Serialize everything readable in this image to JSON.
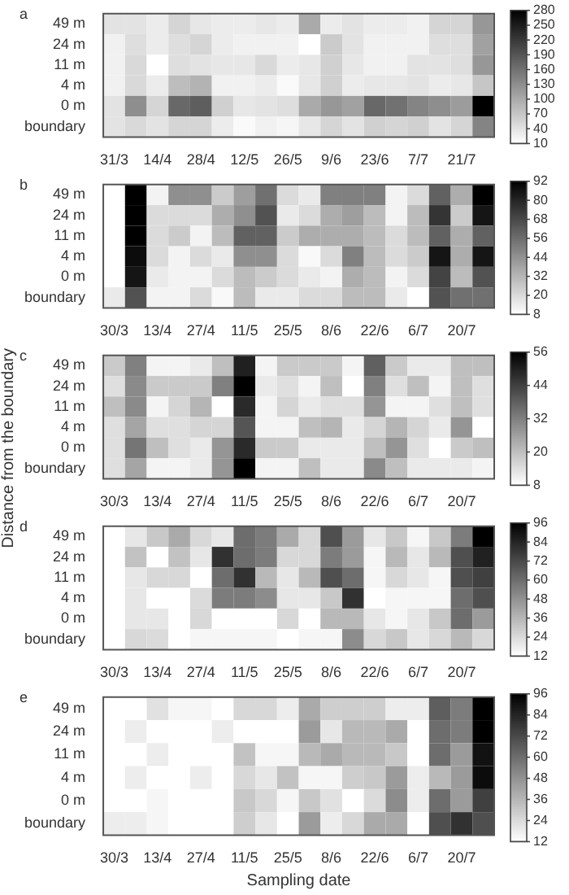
{
  "chart_data": [
    {
      "type": "heatmap",
      "title": "a",
      "categories": [
        "31/3",
        null,
        "14/4",
        null,
        "28/4",
        null,
        "12/5",
        null,
        "26/5",
        null,
        "9/6",
        null,
        "23/6",
        null,
        "7/7",
        null,
        "21/7",
        null
      ],
      "y_categories": [
        "49 m",
        "24 m",
        "11 m",
        "4 m",
        "0 m",
        "boundary"
      ],
      "cells": [
        [
          40,
          40,
          30,
          55,
          35,
          30,
          30,
          35,
          30,
          100,
          30,
          40,
          30,
          30,
          25,
          55,
          55,
          120
        ],
        [
          25,
          45,
          30,
          45,
          55,
          30,
          25,
          25,
          25,
          10,
          65,
          40,
          25,
          25,
          25,
          45,
          45,
          110
        ],
        [
          25,
          50,
          10,
          45,
          40,
          35,
          35,
          50,
          30,
          35,
          60,
          35,
          25,
          25,
          40,
          40,
          45,
          120
        ],
        [
          25,
          50,
          30,
          80,
          90,
          25,
          25,
          30,
          15,
          35,
          60,
          30,
          35,
          35,
          40,
          30,
          35,
          70
        ],
        [
          40,
          130,
          55,
          170,
          180,
          60,
          35,
          40,
          45,
          100,
          120,
          110,
          170,
          160,
          140,
          130,
          115,
          280
        ],
        [
          40,
          50,
          40,
          55,
          55,
          30,
          15,
          25,
          20,
          35,
          55,
          40,
          60,
          55,
          60,
          40,
          55,
          140
        ]
      ],
      "clim": [
        10,
        280
      ],
      "cticks": [
        10,
        40,
        70,
        100,
        130,
        160,
        190,
        220,
        250,
        280
      ]
    },
    {
      "type": "heatmap",
      "title": "b",
      "categories": [
        "30/3",
        null,
        "13/4",
        null,
        "27/4",
        null,
        "11/5",
        null,
        "25/5",
        null,
        "8/6",
        null,
        "22/6",
        null,
        "6/7",
        null,
        "20/7",
        null
      ],
      "y_categories": [
        "49 m",
        "24 m",
        "11 m",
        "4 m",
        "0 m",
        "boundary"
      ],
      "cells": [
        [
          8,
          92,
          12,
          45,
          45,
          25,
          40,
          55,
          20,
          15,
          50,
          50,
          50,
          12,
          20,
          60,
          35,
          92
        ],
        [
          8,
          92,
          20,
          20,
          20,
          35,
          45,
          65,
          15,
          20,
          35,
          40,
          30,
          12,
          30,
          75,
          25,
          85
        ],
        [
          8,
          92,
          20,
          25,
          12,
          30,
          60,
          60,
          25,
          35,
          35,
          35,
          30,
          20,
          30,
          60,
          35,
          60
        ],
        [
          8,
          88,
          20,
          12,
          20,
          15,
          45,
          45,
          20,
          10,
          20,
          50,
          30,
          20,
          25,
          85,
          35,
          85
        ],
        [
          8,
          85,
          15,
          12,
          12,
          20,
          30,
          25,
          20,
          15,
          12,
          35,
          30,
          12,
          20,
          70,
          30,
          65
        ],
        [
          15,
          65,
          12,
          12,
          20,
          10,
          30,
          15,
          15,
          20,
          20,
          30,
          30,
          15,
          8,
          65,
          55,
          55
        ]
      ],
      "clim": [
        8,
        92
      ],
      "cticks": [
        8,
        20,
        32,
        44,
        56,
        68,
        80,
        92
      ]
    },
    {
      "type": "heatmap",
      "title": "c",
      "ylabel": "Distance from the boundary",
      "categories": [
        "30/3",
        null,
        "13/4",
        null,
        "27/4",
        null,
        "11/5",
        null,
        "25/5",
        null,
        "8/6",
        null,
        "22/6",
        null,
        "6/7",
        null,
        "20/7",
        null
      ],
      "y_categories": [
        "49 m",
        "24 m",
        "11 m",
        "4 m",
        "0 m",
        "boundary"
      ],
      "cells": [
        [
          18,
          32,
          10,
          10,
          12,
          20,
          50,
          10,
          18,
          18,
          18,
          10,
          38,
          18,
          12,
          12,
          20,
          20
        ],
        [
          14,
          30,
          18,
          18,
          18,
          32,
          56,
          12,
          14,
          10,
          20,
          8,
          32,
          14,
          20,
          10,
          20,
          14
        ],
        [
          20,
          30,
          10,
          16,
          22,
          8,
          48,
          10,
          16,
          12,
          14,
          14,
          28,
          10,
          10,
          14,
          20,
          14
        ],
        [
          14,
          25,
          14,
          14,
          16,
          16,
          40,
          10,
          10,
          20,
          22,
          12,
          16,
          22,
          16,
          12,
          28,
          8
        ],
        [
          14,
          34,
          20,
          14,
          12,
          28,
          48,
          18,
          18,
          12,
          12,
          12,
          20,
          28,
          14,
          8,
          18,
          20
        ],
        [
          14,
          25,
          10,
          10,
          12,
          28,
          56,
          10,
          10,
          20,
          12,
          12,
          30,
          20,
          12,
          12,
          12,
          10
        ]
      ],
      "clim": [
        8,
        56
      ],
      "cticks": [
        8,
        20,
        32,
        44,
        56
      ]
    },
    {
      "type": "heatmap",
      "title": "d",
      "categories": [
        "30/3",
        null,
        "13/4",
        null,
        "27/4",
        null,
        "11/5",
        null,
        "25/5",
        null,
        "8/6",
        null,
        "22/6",
        null,
        "6/7",
        null,
        "20/7",
        null
      ],
      "y_categories": [
        "49 m",
        "24 m",
        "11 m",
        "4 m",
        "0 m",
        "boundary"
      ],
      "cells": [
        [
          12,
          20,
          30,
          40,
          25,
          20,
          60,
          55,
          40,
          25,
          70,
          45,
          20,
          30,
          15,
          30,
          55,
          96
        ],
        [
          12,
          32,
          12,
          32,
          20,
          80,
          60,
          55,
          25,
          25,
          55,
          45,
          15,
          35,
          20,
          35,
          70,
          85
        ],
        [
          12,
          20,
          25,
          25,
          12,
          60,
          80,
          35,
          20,
          35,
          70,
          60,
          15,
          25,
          20,
          15,
          70,
          75
        ],
        [
          12,
          20,
          12,
          12,
          24,
          55,
          55,
          50,
          20,
          20,
          30,
          80,
          12,
          15,
          15,
          15,
          60,
          70
        ],
        [
          12,
          20,
          20,
          12,
          25,
          12,
          12,
          12,
          25,
          12,
          35,
          35,
          20,
          15,
          20,
          30,
          60,
          45
        ],
        [
          12,
          25,
          24,
          12,
          15,
          15,
          15,
          15,
          12,
          15,
          15,
          50,
          25,
          30,
          20,
          25,
          35,
          25
        ]
      ],
      "clim": [
        12,
        96
      ],
      "cticks": [
        12,
        24,
        36,
        48,
        60,
        72,
        84,
        96
      ]
    },
    {
      "type": "heatmap",
      "title": "e",
      "xlabel": "Sampling date",
      "categories": [
        "30/3",
        null,
        "13/4",
        null,
        "27/4",
        null,
        "11/5",
        null,
        "25/5",
        null,
        "8/6",
        null,
        "22/6",
        null,
        "6/7",
        null,
        "20/7",
        null
      ],
      "y_categories": [
        "49 m",
        "24 m",
        "11 m",
        "4 m",
        "0 m",
        "boundary"
      ],
      "cells": [
        [
          12,
          12,
          22,
          15,
          15,
          12,
          25,
          25,
          18,
          40,
          28,
          28,
          28,
          18,
          18,
          65,
          55,
          96
        ],
        [
          12,
          18,
          12,
          12,
          12,
          18,
          12,
          12,
          12,
          45,
          20,
          35,
          35,
          40,
          12,
          60,
          55,
          96
        ],
        [
          12,
          12,
          18,
          12,
          12,
          12,
          32,
          15,
          15,
          35,
          40,
          35,
          35,
          30,
          12,
          60,
          45,
          90
        ],
        [
          12,
          18,
          12,
          12,
          18,
          12,
          25,
          20,
          32,
          15,
          15,
          28,
          30,
          45,
          18,
          35,
          45,
          92
        ],
        [
          12,
          12,
          15,
          12,
          12,
          12,
          30,
          25,
          15,
          30,
          22,
          12,
          24,
          50,
          18,
          60,
          45,
          75
        ],
        [
          18,
          18,
          15,
          12,
          12,
          12,
          28,
          20,
          12,
          45,
          18,
          25,
          40,
          40,
          12,
          70,
          80,
          70
        ]
      ],
      "clim": [
        12,
        96
      ],
      "cticks": [
        12,
        24,
        36,
        48,
        60,
        72,
        84,
        96
      ]
    }
  ]
}
